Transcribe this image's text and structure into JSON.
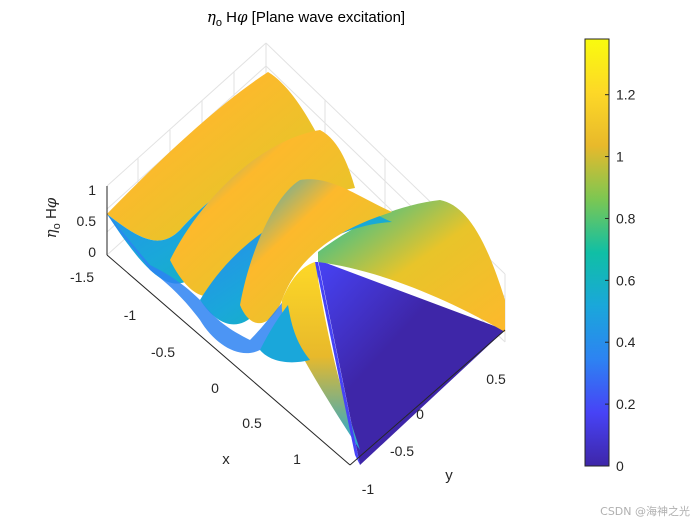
{
  "chart_data": {
    "type": "surface",
    "title": {
      "eta": "η",
      "eta_sub": "o",
      "h": " H",
      "phi": "φ",
      "rest": " [Plane wave excitation]"
    },
    "xlabel": "x",
    "ylabel": "y",
    "zlabel": {
      "eta": "η",
      "eta_sub": "o",
      "h": " H",
      "phi": "φ"
    },
    "xlim": [
      -1.5,
      1.5
    ],
    "ylim": [
      -1,
      1
    ],
    "zlim": [
      0,
      1.38
    ],
    "x_ticks": [
      "-1.5",
      "-1",
      "-0.5",
      "0",
      "0.5",
      "1"
    ],
    "y_ticks": [
      "-1",
      "-0.5",
      "0",
      "0.5"
    ],
    "z_ticks": [
      "0",
      "0.5",
      "1"
    ],
    "colorbar": {
      "range": [
        0,
        1.38
      ],
      "ticks": [
        "0",
        "0.2",
        "0.4",
        "0.6",
        "0.8",
        "1",
        "1.2"
      ],
      "colormap": "parula",
      "colors": [
        "#3e26a8",
        "#4743f6",
        "#2d83f2",
        "#1aa7da",
        "#10bfa5",
        "#7cc752",
        "#e8b92b",
        "#fdd827",
        "#f9fb0e"
      ]
    },
    "grid": true,
    "view": "3D perspective"
  },
  "watermark": "CSDN @海神之光"
}
